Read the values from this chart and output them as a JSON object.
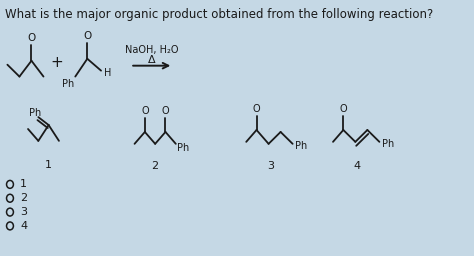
{
  "title": "What is the major organic product obtained from the following reaction?",
  "title_fontsize": 8.5,
  "bg_color": "#c5d8e5",
  "text_color": "#1a1a1a",
  "reaction_label": "NaOH, H₂O",
  "reaction_sublabel": "Δ",
  "figsize": [
    4.74,
    2.56
  ],
  "dpi": 100
}
